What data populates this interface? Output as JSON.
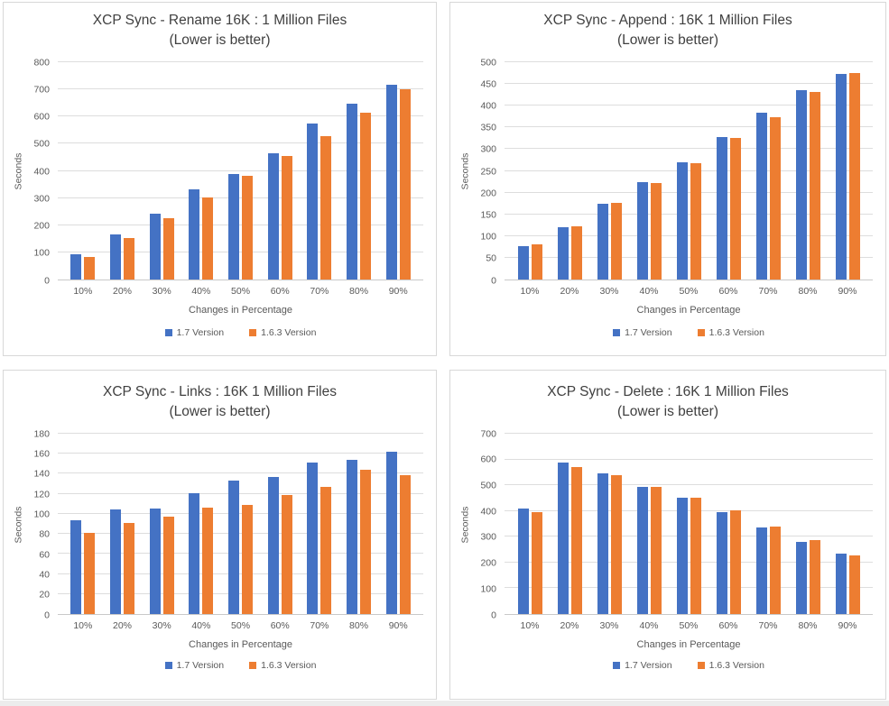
{
  "page": {
    "background_color": "#FFFFFF",
    "footer_strip_color": "#ECECEC",
    "series_colors": {
      "v17_blue": "#4472C4",
      "v163_orange": "#ED7D31"
    }
  },
  "chart_data": [
    {
      "id": "rename",
      "type": "bar",
      "title": "XCP Sync - Rename 16K : 1 Million Files",
      "subtitle": "(Lower is better)",
      "xlabel": "Changes in Percentage",
      "ylabel": "Seconds",
      "ylim": [
        0,
        800
      ],
      "ytick_step": 100,
      "grid": true,
      "legend_position": "bottom",
      "categories": [
        "10%",
        "20%",
        "30%",
        "40%",
        "50%",
        "60%",
        "70%",
        "80%",
        "90%"
      ],
      "series": [
        {
          "name": "1.7 Version",
          "color": "#4472C4",
          "values": [
            93,
            166,
            243,
            331,
            389,
            466,
            575,
            646,
            716
          ]
        },
        {
          "name": "1.6.3 Version",
          "color": "#ED7D31",
          "values": [
            82,
            152,
            227,
            301,
            383,
            455,
            527,
            614,
            700
          ]
        }
      ]
    },
    {
      "id": "append",
      "type": "bar",
      "title": "XCP Sync - Append : 16K 1 Million Files",
      "subtitle": "(Lower is better)",
      "xlabel": "Changes in Percentage",
      "ylabel": "Seconds",
      "ylim": [
        0,
        500
      ],
      "ytick_step": 50,
      "grid": true,
      "legend_position": "bottom",
      "categories": [
        "10%",
        "20%",
        "30%",
        "40%",
        "50%",
        "60%",
        "70%",
        "80%",
        "90%"
      ],
      "series": [
        {
          "name": "1.7 Version",
          "color": "#4472C4",
          "values": [
            77,
            120,
            174,
            225,
            270,
            327,
            383,
            435,
            473
          ]
        },
        {
          "name": "1.6.3 Version",
          "color": "#ED7D31",
          "values": [
            81,
            122,
            176,
            221,
            267,
            325,
            374,
            432,
            476
          ]
        }
      ]
    },
    {
      "id": "links",
      "type": "bar",
      "title": "XCP Sync - Links : 16K 1 Million Files",
      "subtitle": "(Lower is better)",
      "xlabel": "Changes in Percentage",
      "ylabel": "Seconds",
      "ylim": [
        0,
        180
      ],
      "ytick_step": 20,
      "grid": true,
      "legend_position": "bottom",
      "categories": [
        "10%",
        "20%",
        "30%",
        "40%",
        "50%",
        "60%",
        "70%",
        "80%",
        "90%"
      ],
      "series": [
        {
          "name": "1.7 Version",
          "color": "#4472C4",
          "values": [
            94,
            104,
            105,
            121,
            133,
            137,
            151,
            154,
            162
          ]
        },
        {
          "name": "1.6.3 Version",
          "color": "#ED7D31",
          "values": [
            81,
            91,
            97,
            106,
            109,
            119,
            127,
            144,
            139
          ]
        }
      ]
    },
    {
      "id": "delete",
      "type": "bar",
      "title": "XCP Sync - Delete : 16K 1 Million Files",
      "subtitle": "(Lower is better)",
      "xlabel": "Changes in Percentage",
      "ylabel": "Seconds",
      "ylim": [
        0,
        700
      ],
      "ytick_step": 100,
      "grid": true,
      "legend_position": "bottom",
      "categories": [
        "10%",
        "20%",
        "30%",
        "40%",
        "50%",
        "60%",
        "70%",
        "80%",
        "90%"
      ],
      "series": [
        {
          "name": "1.7 Version",
          "color": "#4472C4",
          "values": [
            410,
            589,
            547,
            494,
            453,
            396,
            336,
            279,
            233
          ]
        },
        {
          "name": "1.6.3 Version",
          "color": "#ED7D31",
          "values": [
            397,
            572,
            539,
            492,
            450,
            402,
            341,
            288,
            227
          ]
        }
      ]
    }
  ]
}
